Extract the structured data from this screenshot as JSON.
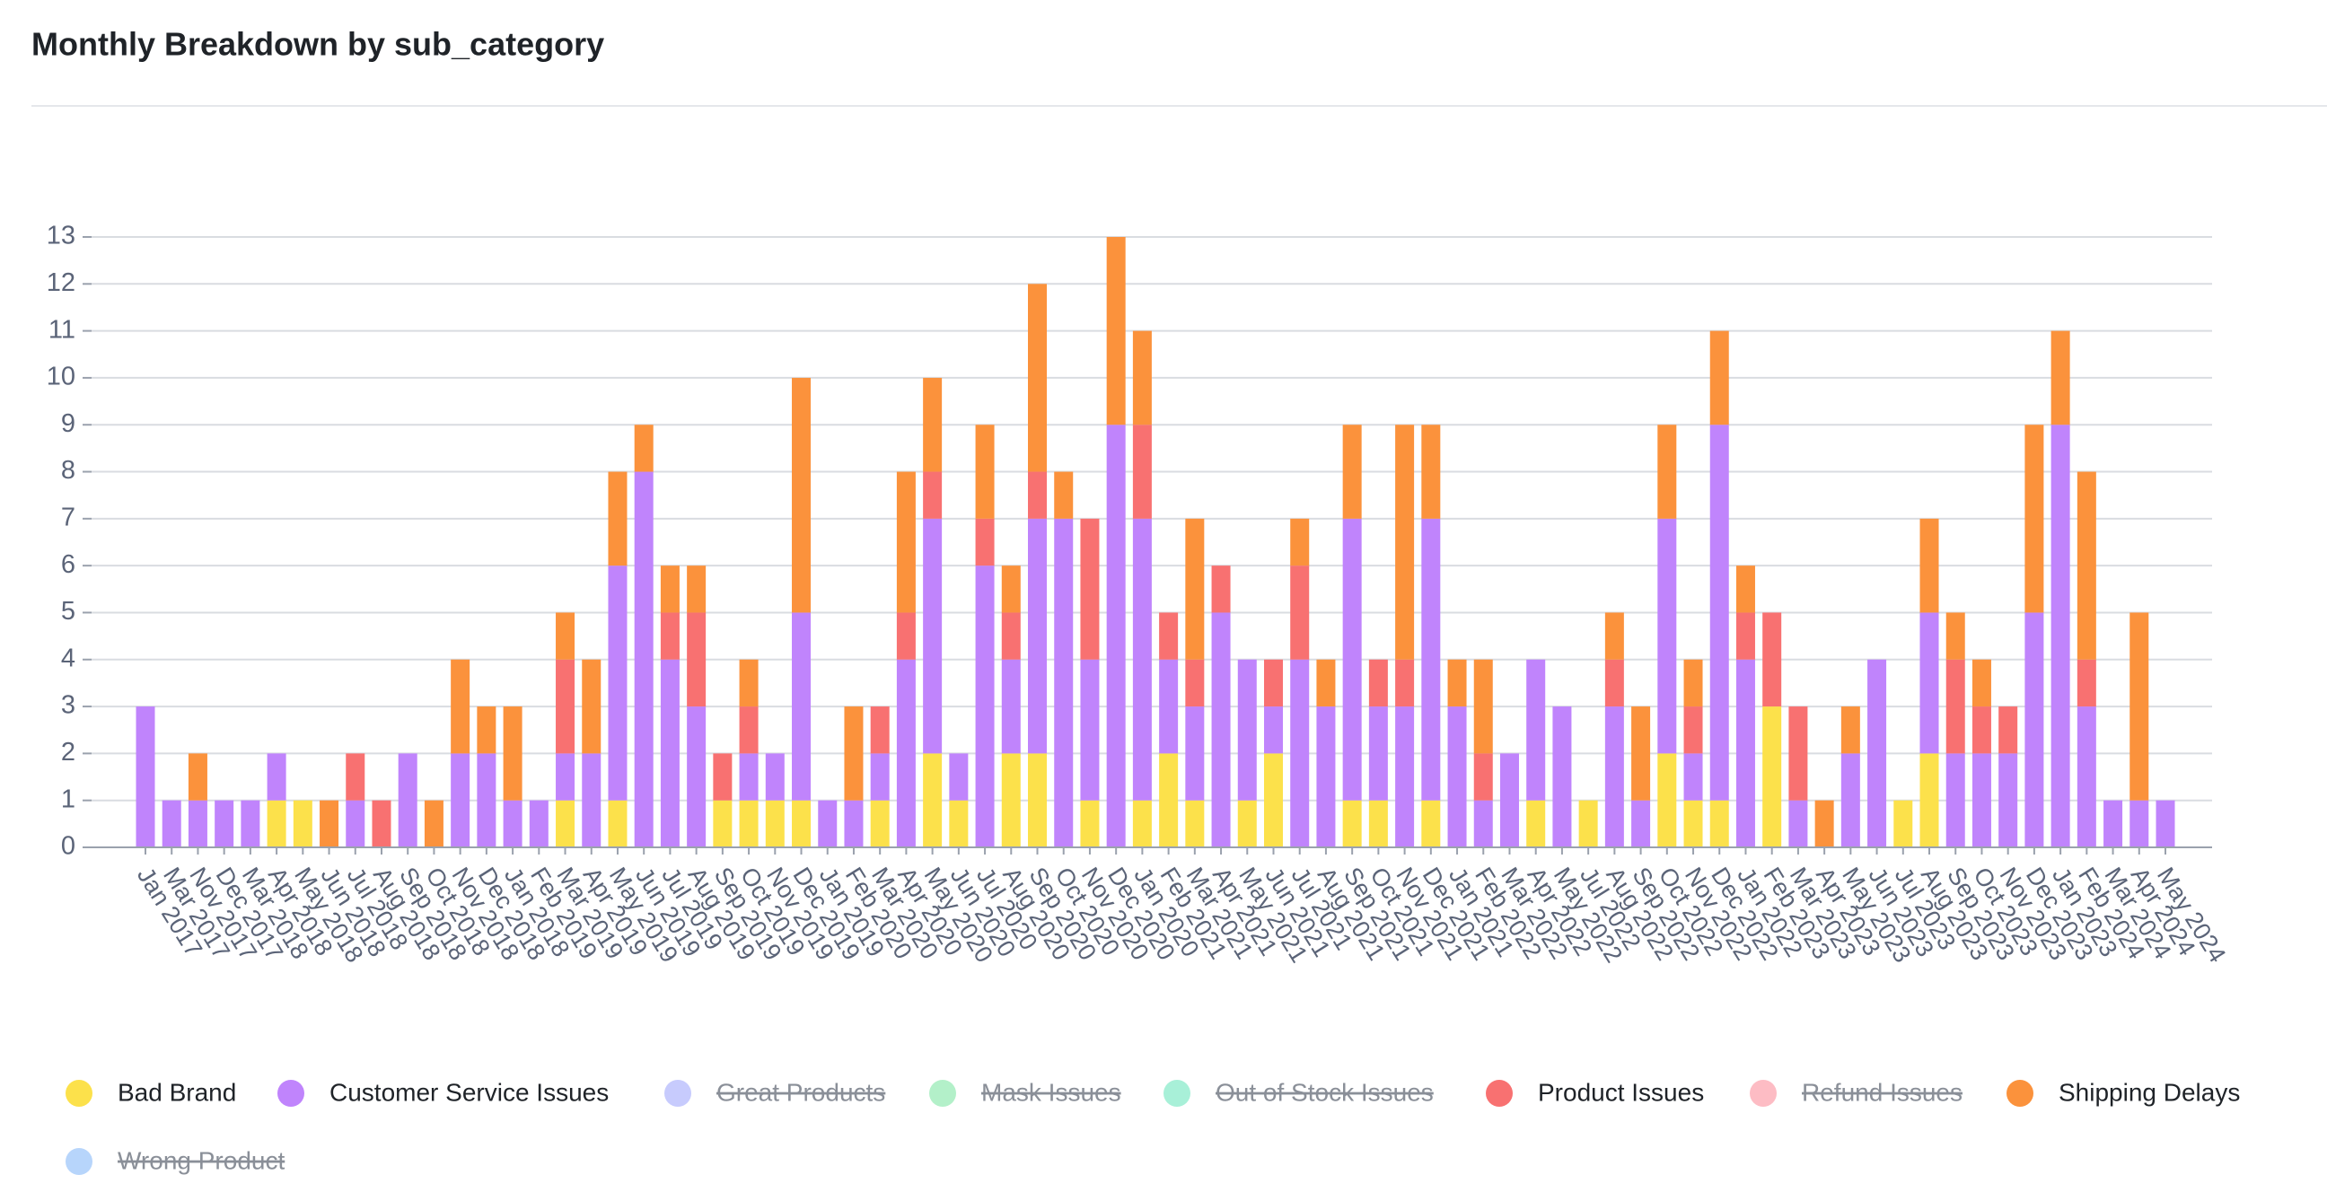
{
  "chart_data": {
    "type": "stacked_bar",
    "title": "Monthly Breakdown by sub_category",
    "categories": [
      "Jan 2017",
      "Mar 2017",
      "Nov 2017",
      "Dec 2017",
      "Mar 2018",
      "Apr 2018",
      "May 2018",
      "Jun 2018",
      "Jul 2018",
      "Aug 2018",
      "Sep 2018",
      "Oct 2018",
      "Nov 2018",
      "Dec 2018",
      "Jan 2018",
      "Feb 2019",
      "Mar 2019",
      "Apr 2019",
      "May 2019",
      "Jun 2019",
      "Jul 2019",
      "Aug 2019",
      "Sep 2019",
      "Oct 2019",
      "Nov 2019",
      "Dec 2019",
      "Jan 2019",
      "Feb 2020",
      "Mar 2020",
      "Apr 2020",
      "May 2020",
      "Jun 2020",
      "Jul 2020",
      "Aug 2020",
      "Sep 2020",
      "Oct 2020",
      "Nov 2020",
      "Dec 2020",
      "Jan 2020",
      "Feb 2021",
      "Mar 2021",
      "Apr 2021",
      "May 2021",
      "Jun 2021",
      "Jul 2021",
      "Aug 2021",
      "Sep 2021",
      "Oct 2021",
      "Nov 2021",
      "Dec 2021",
      "Jan 2021",
      "Feb 2022",
      "Mar 2022",
      "Apr 2022",
      "May 2022",
      "Jul 2022",
      "Aug 2022",
      "Sep 2022",
      "Oct 2022",
      "Nov 2022",
      "Dec 2022",
      "Jan 2022",
      "Feb 2023",
      "Mar 2023",
      "Apr 2023",
      "May 2023",
      "Jun 2023",
      "Jul 2023",
      "Aug 2023",
      "Sep 2023",
      "Oct 2023",
      "Nov 2023",
      "Dec 2023",
      "Jan 2023",
      "Feb 2024",
      "Mar 2024",
      "Apr 2024",
      "May 2024"
    ],
    "series": [
      {
        "name": "Bad Brand",
        "color": "#fce14b",
        "visible": true,
        "values": [
          0,
          0,
          0,
          0,
          0,
          1,
          1,
          0,
          0,
          0,
          0,
          0,
          0,
          0,
          0,
          0,
          1,
          0,
          1,
          0,
          0,
          0,
          1,
          1,
          1,
          1,
          0,
          0,
          1,
          0,
          2,
          1,
          0,
          2,
          2,
          0,
          1,
          0,
          1,
          2,
          1,
          0,
          1,
          2,
          0,
          0,
          1,
          1,
          0,
          1,
          0,
          0,
          0,
          1,
          0,
          1,
          0,
          0,
          2,
          1,
          1,
          0,
          3,
          0,
          0,
          0,
          0,
          1,
          2,
          0,
          0,
          0,
          0,
          0,
          0,
          0,
          0,
          0
        ]
      },
      {
        "name": "Customer Service Issues",
        "color": "#c084fc",
        "visible": true,
        "values": [
          3,
          1,
          1,
          1,
          1,
          1,
          0,
          0,
          1,
          0,
          2,
          0,
          2,
          2,
          1,
          1,
          1,
          2,
          5,
          8,
          4,
          3,
          0,
          1,
          1,
          4,
          1,
          1,
          1,
          4,
          5,
          1,
          6,
          2,
          5,
          7,
          3,
          9,
          6,
          2,
          2,
          5,
          3,
          1,
          4,
          3,
          6,
          2,
          3,
          6,
          3,
          1,
          2,
          3,
          3,
          0,
          3,
          1,
          5,
          1,
          8,
          4,
          0,
          1,
          0,
          2,
          4,
          0,
          3,
          2,
          2,
          2,
          5,
          9,
          3,
          1,
          1,
          1
        ]
      },
      {
        "name": "Great Products",
        "color": "#c7cbfd",
        "visible": false
      },
      {
        "name": "Mask Issues",
        "color": "#b3f0c9",
        "visible": false
      },
      {
        "name": "Out of Stock Issues",
        "color": "#a8f0d8",
        "visible": false
      },
      {
        "name": "Product Issues",
        "color": "#f87171",
        "visible": true,
        "values": [
          0,
          0,
          0,
          0,
          0,
          0,
          0,
          0,
          1,
          1,
          0,
          0,
          0,
          0,
          0,
          0,
          2,
          0,
          0,
          0,
          1,
          2,
          1,
          1,
          0,
          0,
          0,
          0,
          1,
          1,
          1,
          0,
          1,
          1,
          1,
          0,
          3,
          0,
          2,
          1,
          1,
          1,
          0,
          1,
          2,
          0,
          0,
          1,
          1,
          0,
          0,
          1,
          0,
          0,
          0,
          0,
          1,
          0,
          0,
          1,
          0,
          1,
          2,
          2,
          0,
          0,
          0,
          0,
          0,
          2,
          1,
          1,
          0,
          0,
          1,
          0,
          0,
          0
        ]
      },
      {
        "name": "Refund Issues",
        "color": "#fdbcc4",
        "visible": false
      },
      {
        "name": "Shipping Delays",
        "color": "#fb923c",
        "visible": true,
        "values": [
          0,
          0,
          1,
          0,
          0,
          0,
          0,
          1,
          0,
          0,
          0,
          1,
          2,
          1,
          2,
          0,
          1,
          2,
          2,
          1,
          1,
          1,
          0,
          1,
          0,
          5,
          0,
          2,
          0,
          3,
          2,
          0,
          2,
          1,
          4,
          1,
          0,
          4,
          2,
          0,
          3,
          0,
          0,
          0,
          1,
          1,
          2,
          0,
          5,
          2,
          1,
          2,
          0,
          0,
          0,
          0,
          1,
          2,
          2,
          1,
          2,
          1,
          0,
          0,
          1,
          1,
          0,
          0,
          2,
          1,
          1,
          0,
          4,
          2,
          4,
          0,
          4,
          0
        ]
      },
      {
        "name": "Wrong Product",
        "color": "#b7d5fb",
        "visible": false
      }
    ],
    "ylim": [
      0,
      13
    ],
    "yticks": [
      0,
      1,
      2,
      3,
      4,
      5,
      6,
      7,
      8,
      9,
      10,
      11,
      12,
      13
    ],
    "grid": true,
    "legend": "bottom"
  }
}
